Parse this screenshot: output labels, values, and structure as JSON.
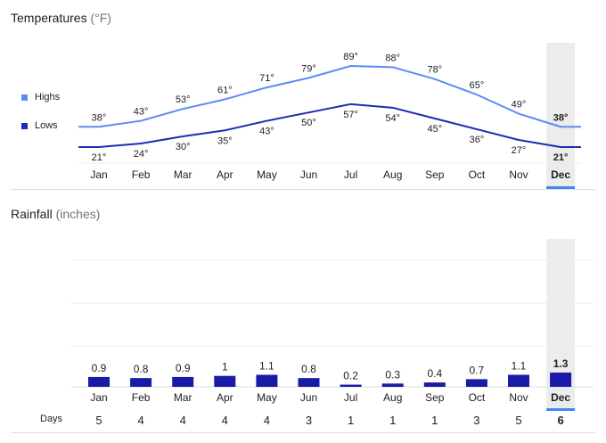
{
  "temperatures": {
    "title": "Temperatures",
    "unit": "(°F)",
    "legend_highs": "Highs",
    "legend_lows": "Lows"
  },
  "rainfall": {
    "title": "Rainfall",
    "unit": "(inches)"
  },
  "days_label": "Days",
  "selected_month": "Dec",
  "colors": {
    "highs": "#5b8def",
    "lows": "#1a2db3",
    "bars": "#1a1aa8",
    "highlight_band": "#ececec",
    "selected_underline": "#4285f4"
  },
  "chart_data": [
    {
      "type": "line",
      "title": "Temperatures (°F)",
      "categories": [
        "Jan",
        "Feb",
        "Mar",
        "Apr",
        "May",
        "Jun",
        "Jul",
        "Aug",
        "Sep",
        "Oct",
        "Nov",
        "Dec"
      ],
      "series": [
        {
          "name": "Highs",
          "values": [
            38,
            43,
            53,
            61,
            71,
            79,
            89,
            88,
            78,
            65,
            49,
            38
          ],
          "labels": [
            "38°",
            "43°",
            "53°",
            "61°",
            "71°",
            "79°",
            "89°",
            "88°",
            "78°",
            "65°",
            "49°",
            "38°"
          ]
        },
        {
          "name": "Lows",
          "values": [
            21,
            24,
            30,
            35,
            43,
            50,
            57,
            54,
            45,
            36,
            27,
            21
          ],
          "labels": [
            "21°",
            "24°",
            "30°",
            "35°",
            "43°",
            "50°",
            "57°",
            "54°",
            "45°",
            "36°",
            "27°",
            "21°"
          ]
        }
      ],
      "ylim": [
        15,
        95
      ]
    },
    {
      "type": "bar",
      "title": "Rainfall (inches)",
      "categories": [
        "Jan",
        "Feb",
        "Mar",
        "Apr",
        "May",
        "Jun",
        "Jul",
        "Aug",
        "Sep",
        "Oct",
        "Nov",
        "Dec"
      ],
      "values": [
        0.9,
        0.8,
        0.9,
        1,
        1.1,
        0.8,
        0.2,
        0.3,
        0.4,
        0.7,
        1.1,
        1.3
      ],
      "value_labels": [
        "0.9",
        "0.8",
        "0.9",
        "1",
        "1.1",
        "0.8",
        "0.2",
        "0.3",
        "0.4",
        "0.7",
        "1.1",
        "1.3"
      ],
      "days": [
        5,
        4,
        4,
        4,
        4,
        3,
        1,
        1,
        1,
        3,
        5,
        6
      ],
      "ylim": [
        0,
        6
      ]
    }
  ]
}
